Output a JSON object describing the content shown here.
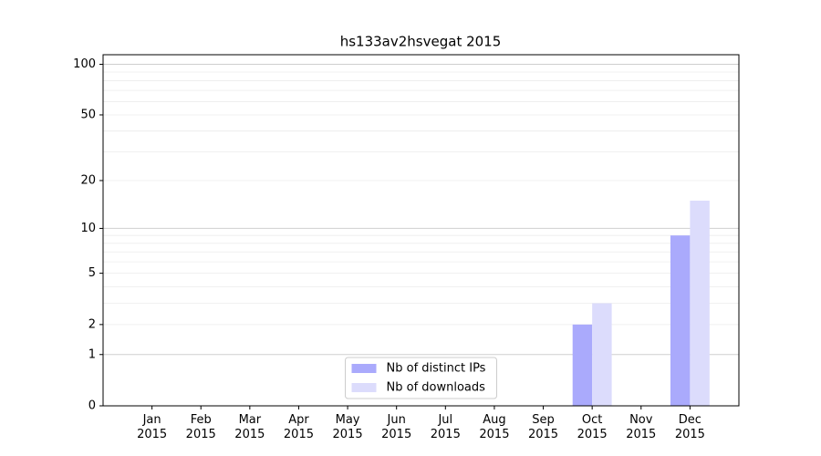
{
  "chart_data": {
    "type": "bar",
    "title": "hs133av2hsvegat 2015",
    "categories": [
      "Jan\n2015",
      "Feb\n2015",
      "Mar\n2015",
      "Apr\n2015",
      "May\n2015",
      "Jun\n2015",
      "Jul\n2015",
      "Aug\n2015",
      "Sep\n2015",
      "Oct\n2015",
      "Nov\n2015",
      "Dec\n2015"
    ],
    "series": [
      {
        "name": "Nb of distinct IPs",
        "color": "#aaaafc",
        "values": [
          0,
          0,
          0,
          0,
          0,
          0,
          0,
          0,
          0,
          2,
          0,
          9
        ]
      },
      {
        "name": "Nb of downloads",
        "color": "#dcdcfc",
        "values": [
          0,
          0,
          0,
          0,
          0,
          0,
          0,
          0,
          0,
          3,
          0,
          15
        ]
      }
    ],
    "yscale": "log1p",
    "ylim": [
      0,
      114
    ],
    "yticks": [
      0,
      1,
      2,
      5,
      10,
      20,
      50,
      100
    ],
    "ygrid_major": [
      1,
      10,
      100
    ],
    "ygrid_minor": [
      2,
      3,
      4,
      5,
      6,
      7,
      8,
      9,
      20,
      30,
      40,
      50,
      60,
      70,
      80,
      90
    ],
    "legend": "lower center"
  }
}
